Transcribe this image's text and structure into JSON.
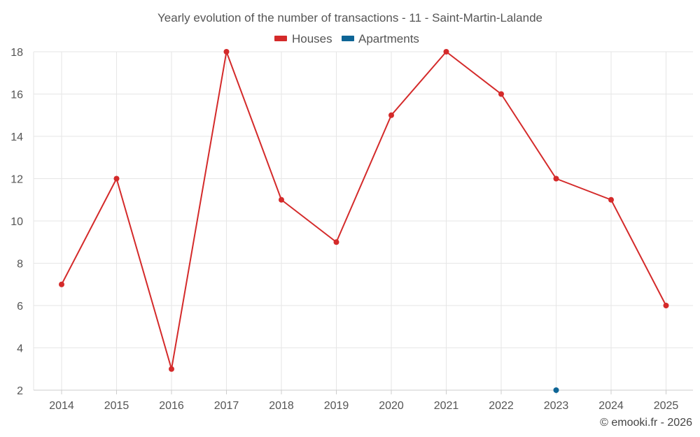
{
  "chart_data": {
    "type": "line",
    "title": "Yearly evolution of the number of transactions - 11 - Saint-Martin-Lalande",
    "categories": [
      "2014",
      "2015",
      "2016",
      "2017",
      "2018",
      "2019",
      "2020",
      "2021",
      "2022",
      "2023",
      "2024",
      "2025"
    ],
    "ylim": [
      2,
      18
    ],
    "yticks": [
      2,
      4,
      6,
      8,
      10,
      12,
      14,
      16,
      18
    ],
    "grid": true,
    "legend_position": "top-center",
    "series": [
      {
        "name": "Houses",
        "color": "#d42a2a",
        "values": [
          7,
          12,
          3,
          18,
          11,
          9,
          15,
          18,
          16,
          12,
          11,
          6
        ]
      },
      {
        "name": "Apartments",
        "color": "#0e6596",
        "values": [
          null,
          null,
          null,
          null,
          null,
          null,
          null,
          null,
          null,
          2,
          null,
          null
        ]
      }
    ],
    "credit": "© emooki.fr - 2026"
  }
}
